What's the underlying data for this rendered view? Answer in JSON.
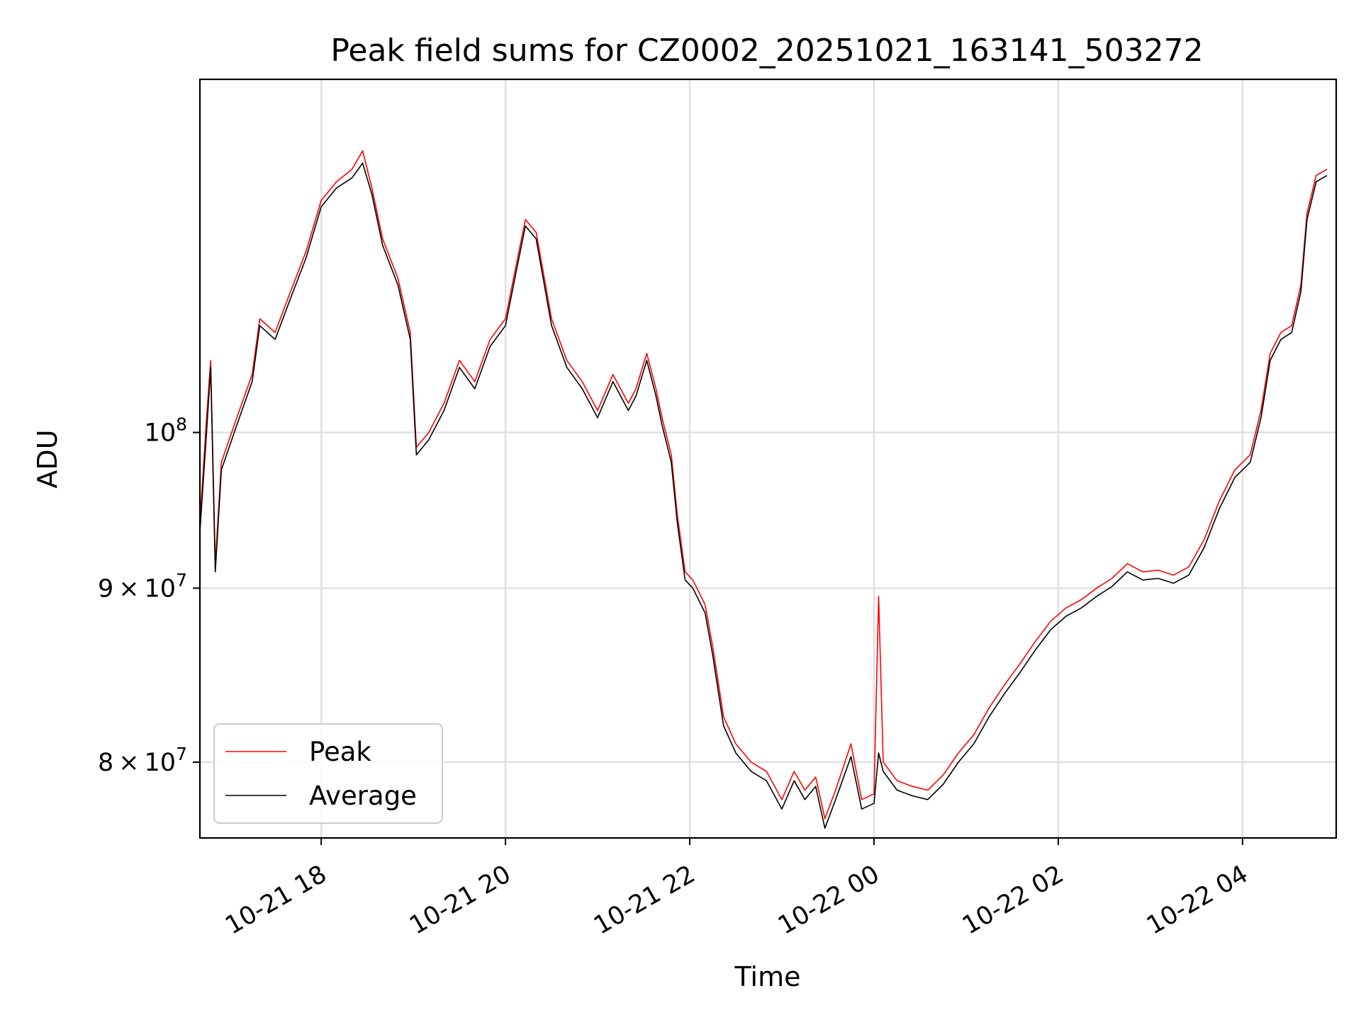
{
  "chart_data": {
    "type": "line",
    "title": "Peak field sums for CZ0002_20251021_163141_503272",
    "xlabel": "Time",
    "ylabel": "ADU",
    "yscale": "log",
    "grid": true,
    "legend_position": "lower-left",
    "xlim": [
      "2025-10-21 16:41",
      "2025-10-22 05:01"
    ],
    "ylim": [
      76000000,
      127000000
    ],
    "x_ticks": [
      {
        "value": "2025-10-21 18:00",
        "label": "10-21 18"
      },
      {
        "value": "2025-10-21 20:00",
        "label": "10-21 20"
      },
      {
        "value": "2025-10-21 22:00",
        "label": "10-21 22"
      },
      {
        "value": "2025-10-22 00:00",
        "label": "10-22 00"
      },
      {
        "value": "2025-10-22 02:00",
        "label": "10-22 02"
      },
      {
        "value": "2025-10-22 04:00",
        "label": "10-22 04"
      }
    ],
    "y_ticks": [
      {
        "value": 80000000,
        "base": "8",
        "times": "×",
        "power": "10",
        "exp": "7"
      },
      {
        "value": 90000000,
        "base": "9",
        "times": "×",
        "power": "10",
        "exp": "7"
      },
      {
        "value": 100000000,
        "base": "",
        "times": "",
        "power": "10",
        "exp": "8"
      }
    ],
    "series": [
      {
        "name": "Peak",
        "color": "#ff0000",
        "points": [
          [
            "2025-10-21 16:41",
            94000000
          ],
          [
            "2025-10-21 16:45",
            100500000
          ],
          [
            "2025-10-21 16:48",
            105000000
          ],
          [
            "2025-10-21 16:51",
            91500000
          ],
          [
            "2025-10-21 16:55",
            98000000
          ],
          [
            "2025-10-21 17:05",
            101000000
          ],
          [
            "2025-10-21 17:15",
            104000000
          ],
          [
            "2025-10-21 17:20",
            108000000
          ],
          [
            "2025-10-21 17:30",
            107000000
          ],
          [
            "2025-10-21 17:40",
            110000000
          ],
          [
            "2025-10-21 17:50",
            113000000
          ],
          [
            "2025-10-21 18:00",
            117000000
          ],
          [
            "2025-10-21 18:10",
            118500000
          ],
          [
            "2025-10-21 18:20",
            119500000
          ],
          [
            "2025-10-21 18:27",
            121000000
          ],
          [
            "2025-10-21 18:33",
            118000000
          ],
          [
            "2025-10-21 18:40",
            114000000
          ],
          [
            "2025-10-21 18:50",
            111000000
          ],
          [
            "2025-10-21 18:58",
            107000000
          ],
          [
            "2025-10-21 19:02",
            99000000
          ],
          [
            "2025-10-21 19:10",
            100000000
          ],
          [
            "2025-10-21 19:20",
            102000000
          ],
          [
            "2025-10-21 19:30",
            105000000
          ],
          [
            "2025-10-21 19:40",
            103500000
          ],
          [
            "2025-10-21 19:50",
            106500000
          ],
          [
            "2025-10-21 20:00",
            108000000
          ],
          [
            "2025-10-21 20:07",
            112000000
          ],
          [
            "2025-10-21 20:13",
            115500000
          ],
          [
            "2025-10-21 20:20",
            114500000
          ],
          [
            "2025-10-21 20:30",
            108000000
          ],
          [
            "2025-10-21 20:40",
            105000000
          ],
          [
            "2025-10-21 20:50",
            103500000
          ],
          [
            "2025-10-21 21:00",
            101500000
          ],
          [
            "2025-10-21 21:10",
            104000000
          ],
          [
            "2025-10-21 21:20",
            102000000
          ],
          [
            "2025-10-21 21:25",
            103000000
          ],
          [
            "2025-10-21 21:32",
            105500000
          ],
          [
            "2025-10-21 21:38",
            103000000
          ],
          [
            "2025-10-21 21:42",
            101000000
          ],
          [
            "2025-10-21 21:48",
            98500000
          ],
          [
            "2025-10-21 21:52",
            94500000
          ],
          [
            "2025-10-21 21:57",
            91000000
          ],
          [
            "2025-10-21 22:02",
            90500000
          ],
          [
            "2025-10-21 22:10",
            89000000
          ],
          [
            "2025-10-21 22:15",
            86500000
          ],
          [
            "2025-10-21 22:22",
            82500000
          ],
          [
            "2025-10-21 22:30",
            81000000
          ],
          [
            "2025-10-21 22:40",
            80000000
          ],
          [
            "2025-10-21 22:50",
            79500000
          ],
          [
            "2025-10-21 23:00",
            78000000
          ],
          [
            "2025-10-21 23:08",
            79500000
          ],
          [
            "2025-10-21 23:15",
            78500000
          ],
          [
            "2025-10-21 23:22",
            79200000
          ],
          [
            "2025-10-21 23:28",
            77000000
          ],
          [
            "2025-10-21 23:35",
            78500000
          ],
          [
            "2025-10-21 23:45",
            81000000
          ],
          [
            "2025-10-21 23:52",
            78000000
          ],
          [
            "2025-10-22 00:00",
            78300000
          ],
          [
            "2025-10-22 00:03",
            89500000
          ],
          [
            "2025-10-22 00:06",
            80000000
          ],
          [
            "2025-10-22 00:15",
            79000000
          ],
          [
            "2025-10-22 00:25",
            78700000
          ],
          [
            "2025-10-22 00:35",
            78500000
          ],
          [
            "2025-10-22 00:45",
            79300000
          ],
          [
            "2025-10-22 00:55",
            80500000
          ],
          [
            "2025-10-22 01:05",
            81500000
          ],
          [
            "2025-10-22 01:15",
            83000000
          ],
          [
            "2025-10-22 01:25",
            84300000
          ],
          [
            "2025-10-22 01:35",
            85500000
          ],
          [
            "2025-10-22 01:45",
            86800000
          ],
          [
            "2025-10-22 01:55",
            88000000
          ],
          [
            "2025-10-22 02:05",
            88800000
          ],
          [
            "2025-10-22 02:15",
            89300000
          ],
          [
            "2025-10-22 02:25",
            90000000
          ],
          [
            "2025-10-22 02:35",
            90600000
          ],
          [
            "2025-10-22 02:45",
            91500000
          ],
          [
            "2025-10-22 02:55",
            91000000
          ],
          [
            "2025-10-22 03:05",
            91100000
          ],
          [
            "2025-10-22 03:15",
            90800000
          ],
          [
            "2025-10-22 03:25",
            91300000
          ],
          [
            "2025-10-22 03:35",
            93000000
          ],
          [
            "2025-10-22 03:45",
            95500000
          ],
          [
            "2025-10-22 03:55",
            97500000
          ],
          [
            "2025-10-22 04:05",
            98500000
          ],
          [
            "2025-10-22 04:12",
            101500000
          ],
          [
            "2025-10-22 04:18",
            105500000
          ],
          [
            "2025-10-22 04:25",
            107000000
          ],
          [
            "2025-10-22 04:32",
            107500000
          ],
          [
            "2025-10-22 04:38",
            110500000
          ],
          [
            "2025-10-22 04:42",
            116000000
          ],
          [
            "2025-10-22 04:48",
            119000000
          ],
          [
            "2025-10-22 04:55",
            119500000
          ]
        ]
      },
      {
        "name": "Average",
        "color": "#000000",
        "points": [
          [
            "2025-10-21 16:41",
            93500000
          ],
          [
            "2025-10-21 16:45",
            99500000
          ],
          [
            "2025-10-21 16:48",
            104500000
          ],
          [
            "2025-10-21 16:51",
            91000000
          ],
          [
            "2025-10-21 16:55",
            97500000
          ],
          [
            "2025-10-21 17:05",
            100500000
          ],
          [
            "2025-10-21 17:15",
            103500000
          ],
          [
            "2025-10-21 17:20",
            107500000
          ],
          [
            "2025-10-21 17:30",
            106500000
          ],
          [
            "2025-10-21 17:40",
            109500000
          ],
          [
            "2025-10-21 17:50",
            112500000
          ],
          [
            "2025-10-21 18:00",
            116500000
          ],
          [
            "2025-10-21 18:10",
            118000000
          ],
          [
            "2025-10-21 18:20",
            118800000
          ],
          [
            "2025-10-21 18:27",
            120000000
          ],
          [
            "2025-10-21 18:33",
            117500000
          ],
          [
            "2025-10-21 18:40",
            113500000
          ],
          [
            "2025-10-21 18:50",
            110500000
          ],
          [
            "2025-10-21 18:58",
            106500000
          ],
          [
            "2025-10-21 19:02",
            98500000
          ],
          [
            "2025-10-21 19:10",
            99500000
          ],
          [
            "2025-10-21 19:20",
            101500000
          ],
          [
            "2025-10-21 19:30",
            104500000
          ],
          [
            "2025-10-21 19:40",
            103000000
          ],
          [
            "2025-10-21 19:50",
            106000000
          ],
          [
            "2025-10-21 20:00",
            107500000
          ],
          [
            "2025-10-21 20:07",
            111500000
          ],
          [
            "2025-10-21 20:13",
            115000000
          ],
          [
            "2025-10-21 20:20",
            114000000
          ],
          [
            "2025-10-21 20:30",
            107500000
          ],
          [
            "2025-10-21 20:40",
            104500000
          ],
          [
            "2025-10-21 20:50",
            103000000
          ],
          [
            "2025-10-21 21:00",
            101000000
          ],
          [
            "2025-10-21 21:10",
            103500000
          ],
          [
            "2025-10-21 21:20",
            101500000
          ],
          [
            "2025-10-21 21:25",
            102500000
          ],
          [
            "2025-10-21 21:32",
            105000000
          ],
          [
            "2025-10-21 21:38",
            102500000
          ],
          [
            "2025-10-21 21:42",
            100500000
          ],
          [
            "2025-10-21 21:48",
            98000000
          ],
          [
            "2025-10-21 21:52",
            94000000
          ],
          [
            "2025-10-21 21:57",
            90500000
          ],
          [
            "2025-10-21 22:02",
            90000000
          ],
          [
            "2025-10-21 22:10",
            88500000
          ],
          [
            "2025-10-21 22:15",
            86000000
          ],
          [
            "2025-10-21 22:22",
            82000000
          ],
          [
            "2025-10-21 22:30",
            80500000
          ],
          [
            "2025-10-21 22:40",
            79500000
          ],
          [
            "2025-10-21 22:50",
            79000000
          ],
          [
            "2025-10-21 23:00",
            77500000
          ],
          [
            "2025-10-21 23:08",
            79000000
          ],
          [
            "2025-10-21 23:15",
            78000000
          ],
          [
            "2025-10-21 23:22",
            78700000
          ],
          [
            "2025-10-21 23:28",
            76500000
          ],
          [
            "2025-10-21 23:35",
            78000000
          ],
          [
            "2025-10-21 23:45",
            80300000
          ],
          [
            "2025-10-21 23:52",
            77500000
          ],
          [
            "2025-10-22 00:00",
            77800000
          ],
          [
            "2025-10-22 00:03",
            80500000
          ],
          [
            "2025-10-22 00:06",
            79500000
          ],
          [
            "2025-10-22 00:15",
            78500000
          ],
          [
            "2025-10-22 00:25",
            78200000
          ],
          [
            "2025-10-22 00:35",
            78000000
          ],
          [
            "2025-10-22 00:45",
            78800000
          ],
          [
            "2025-10-22 00:55",
            80000000
          ],
          [
            "2025-10-22 01:05",
            81000000
          ],
          [
            "2025-10-22 01:15",
            82500000
          ],
          [
            "2025-10-22 01:25",
            83800000
          ],
          [
            "2025-10-22 01:35",
            85000000
          ],
          [
            "2025-10-22 01:45",
            86300000
          ],
          [
            "2025-10-22 01:55",
            87500000
          ],
          [
            "2025-10-22 02:05",
            88300000
          ],
          [
            "2025-10-22 02:15",
            88800000
          ],
          [
            "2025-10-22 02:25",
            89500000
          ],
          [
            "2025-10-22 02:35",
            90100000
          ],
          [
            "2025-10-22 02:45",
            91000000
          ],
          [
            "2025-10-22 02:55",
            90500000
          ],
          [
            "2025-10-22 03:05",
            90600000
          ],
          [
            "2025-10-22 03:15",
            90300000
          ],
          [
            "2025-10-22 03:25",
            90800000
          ],
          [
            "2025-10-22 03:35",
            92500000
          ],
          [
            "2025-10-22 03:45",
            95000000
          ],
          [
            "2025-10-22 03:55",
            97000000
          ],
          [
            "2025-10-22 04:05",
            98000000
          ],
          [
            "2025-10-22 04:12",
            101000000
          ],
          [
            "2025-10-22 04:18",
            105000000
          ],
          [
            "2025-10-22 04:25",
            106500000
          ],
          [
            "2025-10-22 04:32",
            107000000
          ],
          [
            "2025-10-22 04:38",
            110000000
          ],
          [
            "2025-10-22 04:42",
            115500000
          ],
          [
            "2025-10-22 04:48",
            118500000
          ],
          [
            "2025-10-22 04:55",
            119000000
          ]
        ]
      }
    ]
  }
}
